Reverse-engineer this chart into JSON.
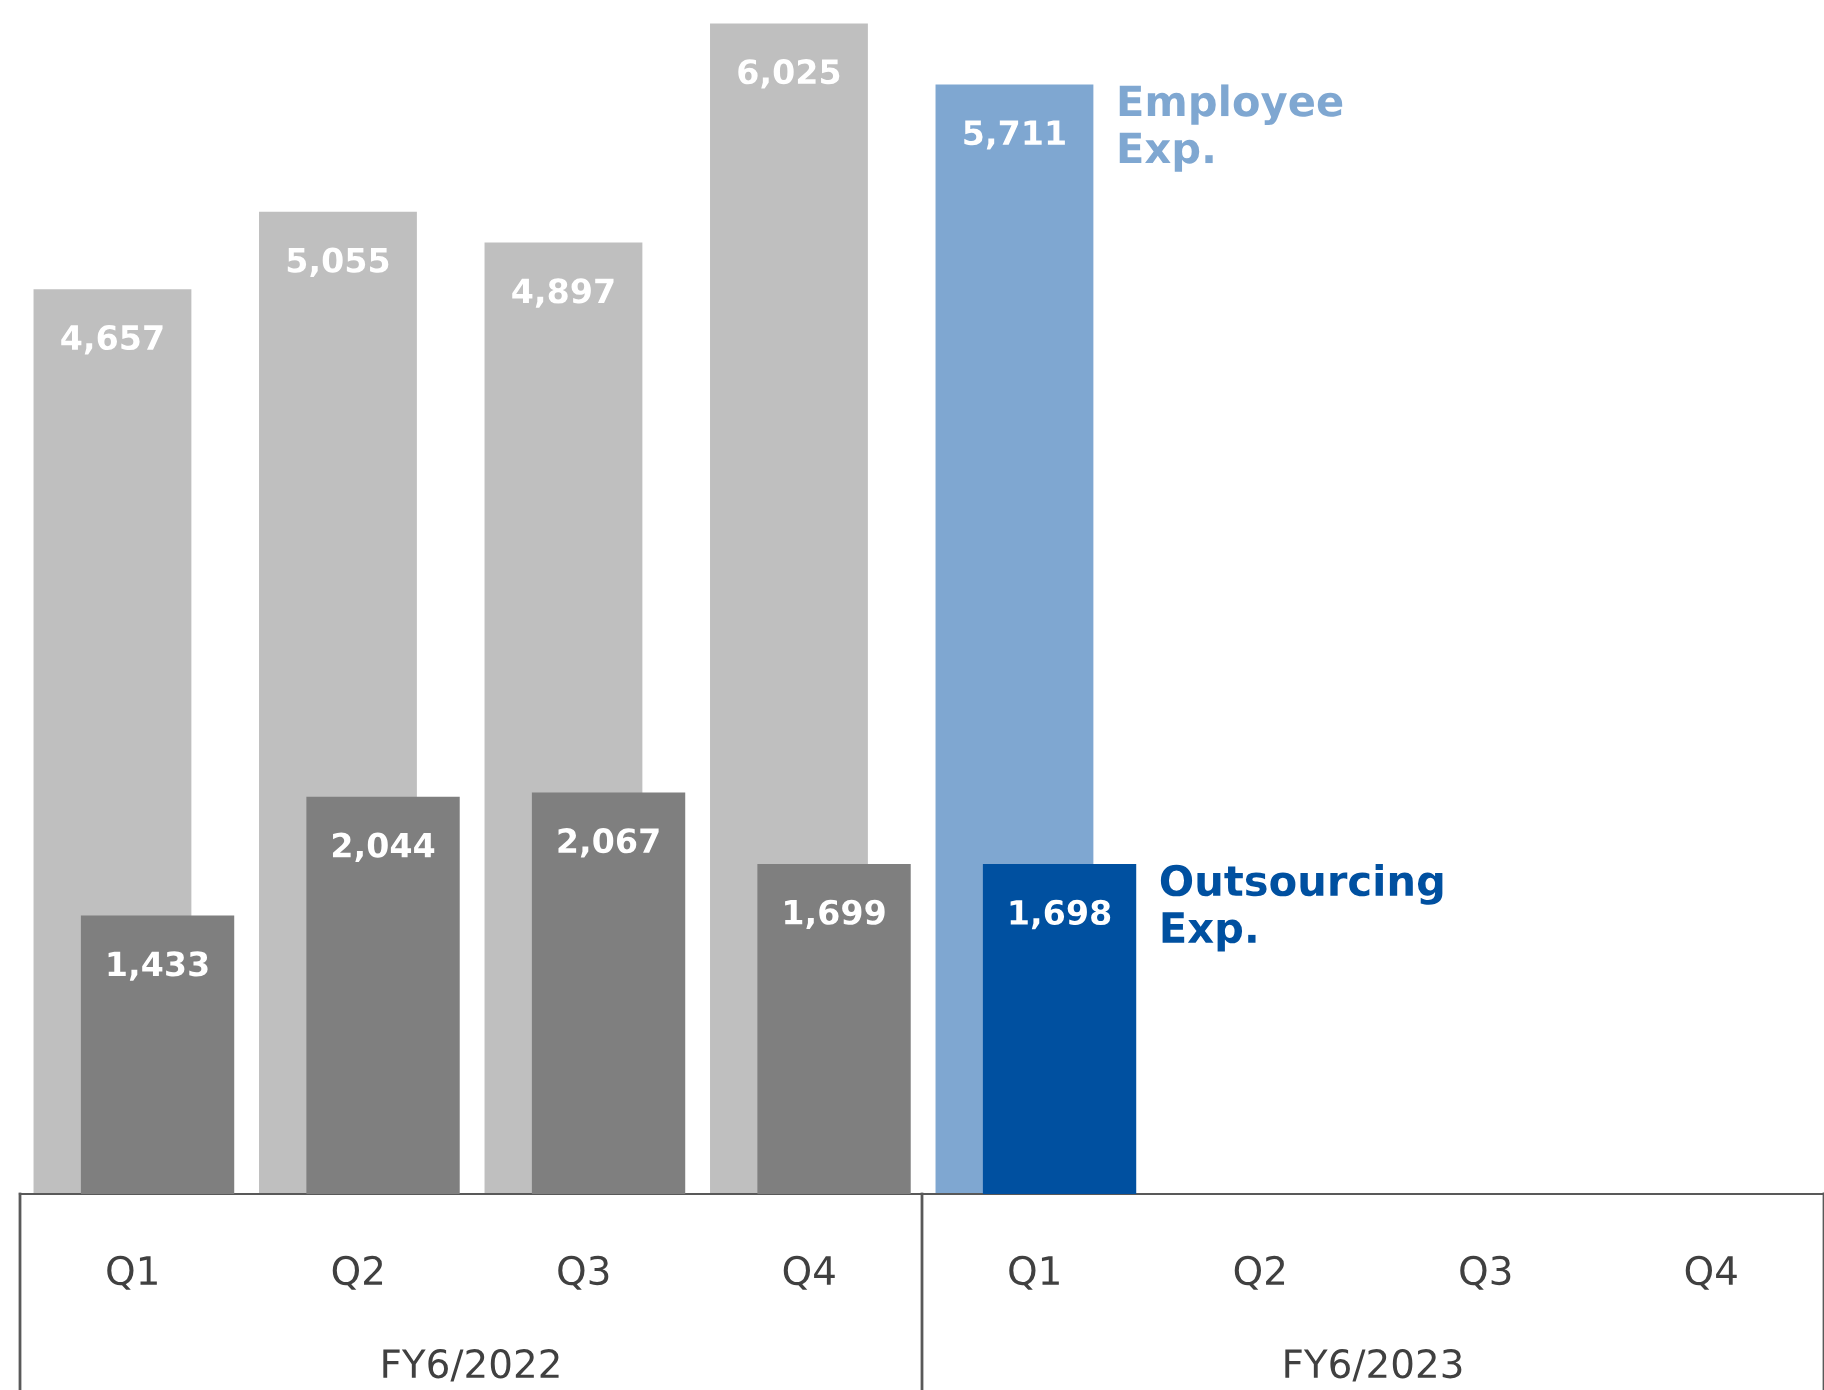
{
  "chart_data": {
    "type": "bar",
    "categories": [
      "Q1",
      "Q2",
      "Q3",
      "Q4",
      "Q1",
      "Q2",
      "Q3",
      "Q4"
    ],
    "series": [
      {
        "name": "Employee Exp.",
        "color": "#7fa7d1",
        "colors": [
          "#bfbfbf",
          "#bfbfbf",
          "#bfbfbf",
          "#bfbfbf",
          "#7fa7d1",
          "#7fa7d1",
          "#7fa7d1",
          "#7fa7d1"
        ],
        "values": [
          4657,
          5055,
          4897,
          6025,
          5711,
          null,
          null,
          null
        ],
        "value_labels": [
          "4,657",
          "5,055",
          "4,897",
          "6,025",
          "5,711",
          null,
          null,
          null
        ]
      },
      {
        "name": "Outsourcing Exp.",
        "color": "#0050a0",
        "colors": [
          "#7f7f7f",
          "#7f7f7f",
          "#7f7f7f",
          "#7f7f7f",
          "#0050a0",
          "#0050a0",
          "#0050a0",
          "#0050a0"
        ],
        "values": [
          1433,
          2044,
          2067,
          1699,
          1698,
          null,
          null,
          null
        ],
        "value_labels": [
          "1,433",
          "2,044",
          "2,067",
          "1,699",
          "1,698",
          null,
          null,
          null
        ]
      }
    ],
    "legend": false,
    "grid": false,
    "annotations": [
      "FY6/2022",
      "FY6/2023"
    ]
  }
}
